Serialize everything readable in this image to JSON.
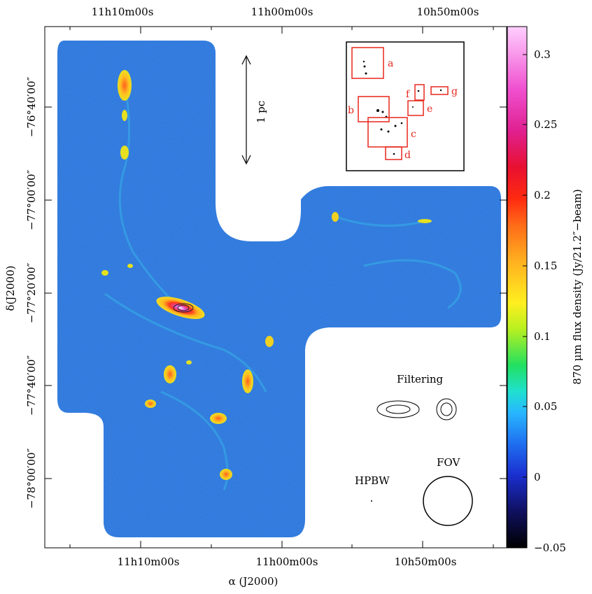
{
  "figure": {
    "ra_top_ticks": [
      "11h10m00s",
      "11h00m00s",
      "10h50m00s"
    ],
    "ra_bottom_ticks": [
      "11h10m00s",
      "11h00m00s",
      "10h50m00s"
    ],
    "dec_ticks": [
      "−76°40′00″",
      "−77°00′00″",
      "−77°20′00″",
      "−77°40′00″",
      "−78°00′00″"
    ],
    "xlabel": "α (J2000)",
    "ylabel": "δ(J2000)",
    "scalebar_label": "1 pc",
    "inset_labels": [
      "a",
      "b",
      "c",
      "d",
      "e",
      "f",
      "g"
    ],
    "filtering_label": "Filtering",
    "fov_label": "FOV",
    "hpbw_label": "HPBW",
    "colorbar": {
      "label": "870 μm flux density (Jy/21.2″−beam)",
      "ticks": [
        "0.3",
        "0.25",
        "0.2",
        "0.15",
        "0.1",
        "0.05",
        "0",
        "−0.05"
      ],
      "min": -0.05,
      "max": 0.32
    },
    "colors": {
      "map_background": "#2f6fd6",
      "inset_box": "#e8261c"
    }
  }
}
